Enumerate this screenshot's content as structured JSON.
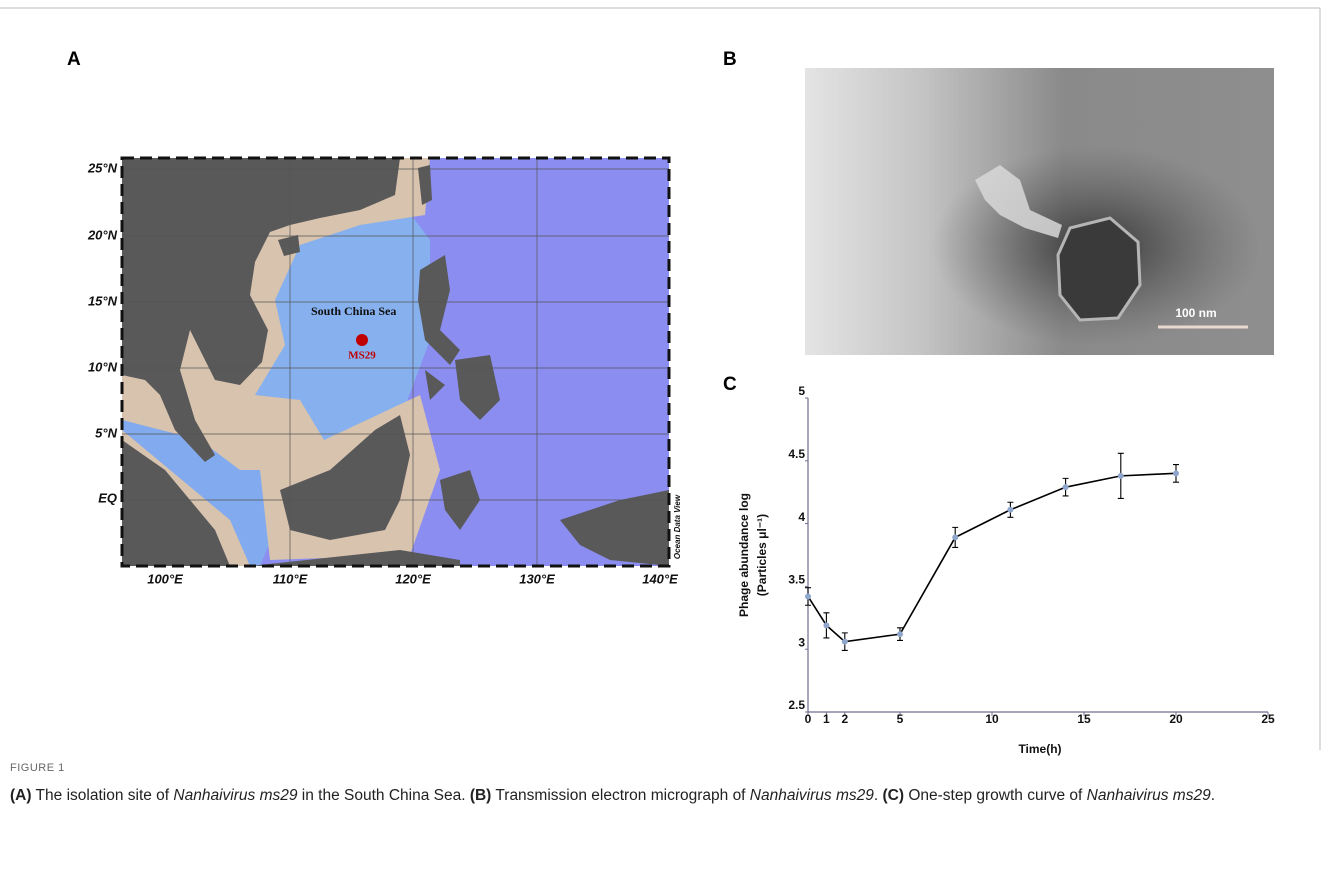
{
  "panels": {
    "a": "A",
    "b": "B",
    "c": "C"
  },
  "map": {
    "lat_labels": [
      "25°N",
      "20°N",
      "15°N",
      "10°N",
      "5°N",
      "EQ"
    ],
    "lon_labels": [
      "100°E",
      "110°E",
      "120°E",
      "130°E",
      "140°E"
    ],
    "sea_label": "South China Sea",
    "site_label": "MS29",
    "credit": "Ocean Data View"
  },
  "micrograph": {
    "scale_label": "100 nm"
  },
  "chart_data": {
    "type": "line",
    "x_label": "Time(h)",
    "y_label": [
      "Phage abundance log",
      "(Particles μl⁻¹)"
    ],
    "x": [
      0,
      1,
      2,
      5,
      8,
      11,
      14,
      17,
      20
    ],
    "values": [
      3.42,
      3.19,
      3.06,
      3.12,
      3.89,
      4.11,
      4.29,
      4.38,
      4.4
    ],
    "errors": [
      0.07,
      0.1,
      0.07,
      0.05,
      0.08,
      0.06,
      0.07,
      0.18,
      0.07
    ],
    "color": "#000000",
    "marker_color": "#8fa6cc",
    "xlim": [
      0,
      25
    ],
    "xticks": [
      0,
      1,
      2,
      5,
      10,
      15,
      20,
      25
    ],
    "ylim": [
      2.5,
      5
    ],
    "yticks": [
      2.5,
      3,
      3.5,
      4,
      4.5,
      5
    ]
  },
  "caption": {
    "label": "FIGURE 1",
    "parts": [
      "(A)",
      " The isolation site of ",
      "Nanhaivirus ms29",
      " in the South China Sea. ",
      "(B)",
      " Transmission electron micrograph of ",
      "Nanhaivirus ms29",
      ". ",
      "(C)",
      " One-step growth curve of ",
      "Nanhaivirus ms29",
      "."
    ]
  }
}
